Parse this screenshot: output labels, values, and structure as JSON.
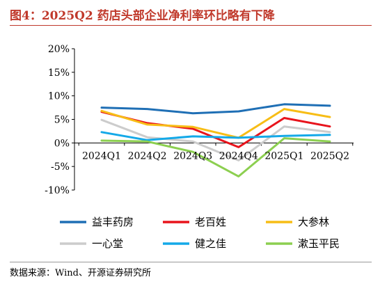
{
  "header": {
    "title": "图4：2025Q2 药店头部企业净利率环比略有下降"
  },
  "footer": {
    "source": "数据来源：Wind、开源证券研究所"
  },
  "chart_data": {
    "type": "line",
    "categories": [
      "2024Q1",
      "2024Q2",
      "2024Q3",
      "2024Q4",
      "2025Q1",
      "2025Q2"
    ],
    "y_ticks": [
      "20%",
      "15%",
      "10%",
      "5%",
      "0%",
      "-5%",
      "-10%"
    ],
    "ylim": [
      -10,
      20
    ],
    "y_step": 5,
    "grid": false,
    "legend_position": "bottom",
    "series": [
      {
        "name": "益丰药房",
        "color": "#1f6fb5",
        "values": [
          7.5,
          7.2,
          6.3,
          6.7,
          8.2,
          7.9
        ]
      },
      {
        "name": "老百姓",
        "color": "#e8141c",
        "values": [
          6.6,
          4.2,
          3.0,
          -0.9,
          5.3,
          3.5
        ]
      },
      {
        "name": "大参林",
        "color": "#f7bd16",
        "values": [
          6.8,
          3.9,
          3.4,
          1.1,
          7.2,
          5.5
        ]
      },
      {
        "name": "一心堂",
        "color": "#cccccc",
        "values": [
          4.9,
          1.2,
          0.3,
          -3.7,
          3.5,
          2.3
        ]
      },
      {
        "name": "健之佳",
        "color": "#14a9e8",
        "values": [
          2.3,
          0.6,
          1.4,
          1.1,
          1.5,
          1.7
        ]
      },
      {
        "name": "漱玉平民",
        "color": "#8ccf50",
        "values": [
          0.5,
          0.3,
          -1.9,
          -7.1,
          1.0,
          0.3
        ]
      }
    ]
  }
}
